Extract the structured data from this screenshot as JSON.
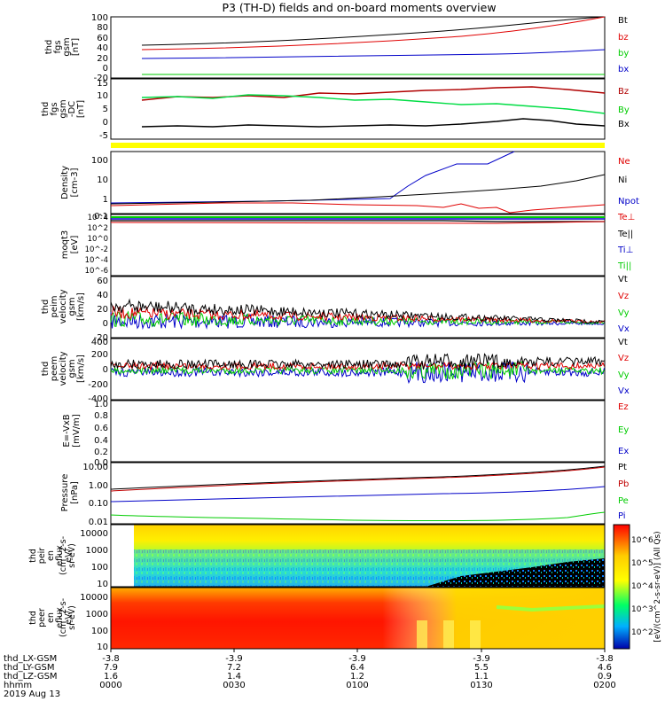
{
  "title": "P3 (TH-D) fields and on-board moments overview",
  "colors": {
    "black": "#000000",
    "red": "#e00000",
    "blue": "#0000c8",
    "green": "#00cc00",
    "yellow": "#ffff00"
  },
  "colorbar": {
    "label": "[eV/(cm^2-s-sr-eV)] (All Qs)",
    "ticks": [
      "10^6",
      "10^5",
      "10^4",
      "10^3",
      "10^2"
    ]
  },
  "ephemeris": {
    "rows": [
      {
        "label": "thd_LX-GSM",
        "values": [
          "-3.8",
          "-3.9",
          "-3.9",
          "-3.9",
          "-3.8"
        ]
      },
      {
        "label": "thd_LY-GSM",
        "values": [
          "7.9",
          "7.2",
          "6.4",
          "5.5",
          "4.6"
        ]
      },
      {
        "label": "thd_LZ-GSM",
        "values": [
          "1.6",
          "1.4",
          "1.2",
          "1.1",
          "0.9"
        ]
      },
      {
        "label": "hhmm",
        "values": [
          "0000",
          "0030",
          "0100",
          "0130",
          "0200"
        ]
      }
    ],
    "date": "2019 Aug 13"
  },
  "chart_data": [
    {
      "type": "line",
      "title": "",
      "ylabel": "thd fgs gsm [nT]",
      "ylim": [
        -20,
        100
      ],
      "yticks": [
        "100",
        "80",
        "60",
        "40",
        "20",
        "0",
        "-20"
      ],
      "x": [
        "00:10",
        "00:30",
        "01:00",
        "01:30",
        "02:00"
      ],
      "series": [
        {
          "name": "Bt",
          "values": [
            44,
            52,
            62,
            80,
            110
          ]
        },
        {
          "name": "bz",
          "values": [
            35,
            40,
            50,
            65,
            100
          ]
        },
        {
          "name": "by",
          "values": [
            18,
            20,
            24,
            29,
            36
          ]
        },
        {
          "name": "bx",
          "values": [
            -15,
            -15,
            -15,
            -15,
            -15
          ]
        }
      ]
    },
    {
      "type": "line",
      "title": "",
      "ylabel": "thd fgs gsm -DC [nT]",
      "ylim": [
        -8,
        15
      ],
      "yticks": [
        "15",
        "10",
        "5",
        "0",
        "-5"
      ],
      "x": [
        "00:10",
        "00:30",
        "01:00",
        "01:30",
        "02:00"
      ],
      "series": [
        {
          "name": "Bz",
          "values": [
            8,
            9,
            9,
            12,
            10
          ]
        },
        {
          "name": "By",
          "values": [
            9,
            9,
            8,
            6,
            4
          ]
        },
        {
          "name": "Bx",
          "values": [
            -1,
            -1,
            -1,
            1,
            -1
          ]
        }
      ]
    },
    {
      "type": "line",
      "title": "",
      "ylabel": "Density [cm-3]",
      "ylim": [
        0.1,
        100
      ],
      "scale": "log",
      "yticks": [
        "100",
        "10",
        "1",
        "0.1"
      ],
      "x": [
        "00:00",
        "00:30",
        "01:00",
        "01:15",
        "01:25",
        "01:40",
        "02:00"
      ],
      "series": [
        {
          "name": "Ne",
          "values": [
            0.4,
            0.5,
            0.5,
            0.4,
            0.3,
            0.2,
            0.3
          ]
        },
        {
          "name": "Ni",
          "values": [
            0.4,
            0.5,
            0.9,
            1.3,
            2,
            5,
            15
          ]
        },
        {
          "name": "Npot",
          "values": [
            0.5,
            0.6,
            0.9,
            20,
            40,
            40,
            300
          ]
        }
      ]
    },
    {
      "type": "line",
      "title": "",
      "ylabel": "moqt3 [eV]",
      "ylim": [
        1e-06,
        10000
      ],
      "scale": "log",
      "yticks": [
        "10^4",
        "10^2",
        "10^0",
        "10^-2",
        "10^-4",
        "10^-6"
      ],
      "series": [
        {
          "name": "Te⊥"
        },
        {
          "name": "Te||"
        },
        {
          "name": "Ti⊥"
        },
        {
          "name": "Ti||"
        }
      ]
    },
    {
      "type": "line",
      "title": "",
      "ylabel": "thd peim velocity gsm [km/s]",
      "ylim": [
        -20,
        60
      ],
      "yticks": [
        "60",
        "40",
        "20",
        "0",
        "-20"
      ],
      "series": [
        {
          "name": "Vt"
        },
        {
          "name": "Vz"
        },
        {
          "name": "Vy"
        },
        {
          "name": "Vx"
        }
      ]
    },
    {
      "type": "line",
      "title": "",
      "ylabel": "thd peem velocity gsm [km/s]",
      "ylim": [
        -400,
        400
      ],
      "yticks": [
        "400",
        "200",
        "0",
        "-200",
        "-400"
      ],
      "series": [
        {
          "name": "Vt"
        },
        {
          "name": "Vz"
        },
        {
          "name": "Vy"
        },
        {
          "name": "Vx"
        }
      ]
    },
    {
      "type": "line",
      "title": "",
      "ylabel": "E=-VxB [mV/m]",
      "ylim": [
        0,
        1
      ],
      "yticks": [
        "1.0",
        "0.8",
        "0.6",
        "0.4",
        "0.2",
        "0.0"
      ],
      "series": [
        {
          "name": "Ez"
        },
        {
          "name": "Ey"
        },
        {
          "name": "Ex"
        }
      ]
    },
    {
      "type": "line",
      "title": "",
      "ylabel": "Pressure [nPa]",
      "ylim": [
        0.005,
        10
      ],
      "scale": "log",
      "yticks": [
        "10.00",
        "1.00",
        "0.10",
        "0.01"
      ],
      "x": [
        "00:00",
        "00:30",
        "01:00",
        "01:30",
        "02:00"
      ],
      "series": [
        {
          "name": "Pt",
          "values": [
            0.8,
            1.4,
            2,
            3,
            6
          ]
        },
        {
          "name": "Pb",
          "values": [
            0.7,
            1.3,
            2,
            3,
            6
          ]
        },
        {
          "name": "Pe",
          "values": [
            0.2,
            0.26,
            0.36,
            0.48,
            0.8
          ]
        },
        {
          "name": "Pi",
          "values": [
            0.015,
            0.013,
            0.012,
            0.014,
            0.035
          ]
        }
      ]
    },
    {
      "type": "heatmap",
      "title": "",
      "ylabel": "thd peir en eflux eV/(cm^2-s-sr-eV)",
      "scale": "log",
      "yticks": [
        "10000",
        "1000",
        "100",
        "10"
      ]
    },
    {
      "type": "heatmap",
      "title": "",
      "ylabel": "thd peer en eflux eV/(cm^2-s-sr-eV)",
      "scale": "log",
      "yticks": [
        "10000",
        "1000",
        "100",
        "10"
      ]
    }
  ]
}
